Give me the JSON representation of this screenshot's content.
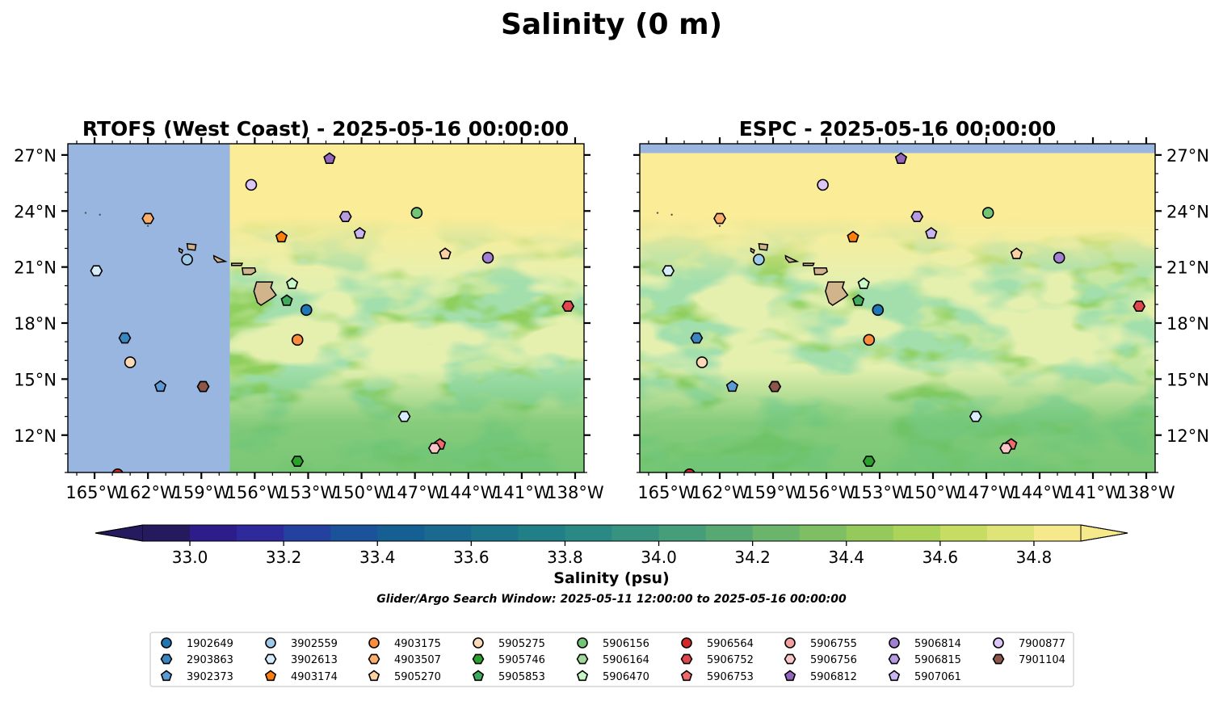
{
  "figure": {
    "title": "Salinity (0 m)",
    "footnote": "Glider/Argo Search Window: 2025-05-11 12:00:00 to 2025-05-16 00:00:00"
  },
  "chart_data": [
    {
      "type": "map-contour",
      "title": "RTOFS (West Coast) - 2025-05-16 00:00:00",
      "lon_range": [
        -166.5,
        -137.5
      ],
      "lat_range": [
        10.0,
        27.6
      ],
      "x_ticks": [
        "165°W",
        "162°W",
        "159°W",
        "156°W",
        "153°W",
        "150°W",
        "147°W",
        "144°W",
        "141°W",
        "138°W"
      ],
      "y_ticks": [
        "12°N",
        "15°N",
        "18°N",
        "21°N",
        "24°N",
        "27°N"
      ],
      "x_tick_values": [
        -165,
        -162,
        -159,
        -156,
        -153,
        -150,
        -147,
        -144,
        -141,
        -138
      ],
      "y_tick_values": [
        12,
        15,
        18,
        21,
        24,
        27
      ],
      "y_axis_side": "left",
      "no_data_region": {
        "lon": [
          -166.5,
          -157.4
        ],
        "color": "#98b6e0"
      },
      "argo_floats": [
        {
          "id": "1902649",
          "lon": -153.1,
          "lat": 18.7
        },
        {
          "id": "2903863",
          "lon": -163.3,
          "lat": 17.2
        },
        {
          "id": "3902373",
          "lon": -161.3,
          "lat": 14.6
        },
        {
          "id": "3902559",
          "lon": -159.8,
          "lat": 21.4
        },
        {
          "id": "3902613",
          "lon": -164.9,
          "lat": 20.8
        },
        {
          "id": "4903174",
          "lon": -154.5,
          "lat": 22.6
        },
        {
          "id": "4903175",
          "lon": -153.6,
          "lat": 17.1
        },
        {
          "id": "4903507",
          "lon": -162.0,
          "lat": 23.6
        },
        {
          "id": "5905270",
          "lon": -145.3,
          "lat": 21.7
        },
        {
          "id": "5905275",
          "lon": -163.0,
          "lat": 15.9
        },
        {
          "id": "5905746",
          "lon": -158.9,
          "lat": 14.6
        },
        {
          "id": "5905746",
          "lon": -153.6,
          "lat": 10.6
        },
        {
          "id": "5905853",
          "lon": -154.2,
          "lat": 19.2
        },
        {
          "id": "5906156",
          "lon": -146.9,
          "lat": 23.9
        },
        {
          "id": "5906470",
          "lon": -153.9,
          "lat": 20.1
        },
        {
          "id": "5906564",
          "lon": -163.7,
          "lat": 9.9
        },
        {
          "id": "5906752",
          "lon": -138.4,
          "lat": 18.9
        },
        {
          "id": "5906753",
          "lon": -145.6,
          "lat": 11.5
        },
        {
          "id": "5906756",
          "lon": -145.9,
          "lat": 11.3
        },
        {
          "id": "5906812",
          "lon": -151.8,
          "lat": 26.8
        },
        {
          "id": "5906814",
          "lon": -142.9,
          "lat": 21.5
        },
        {
          "id": "5906815",
          "lon": -150.9,
          "lat": 23.7
        },
        {
          "id": "5907061",
          "lon": -150.1,
          "lat": 22.8
        },
        {
          "id": "3902613",
          "lon": -147.6,
          "lat": 13.0
        },
        {
          "id": "7900877",
          "lon": -156.2,
          "lat": 25.4
        },
        {
          "id": "7901104",
          "lon": -158.9,
          "lat": 14.6
        }
      ]
    },
    {
      "type": "map-contour",
      "title": "ESPC - 2025-05-16 00:00:00",
      "lon_range": [
        -166.5,
        -137.5
      ],
      "lat_range": [
        10.0,
        27.6
      ],
      "x_ticks": [
        "165°W",
        "162°W",
        "159°W",
        "156°W",
        "153°W",
        "150°W",
        "147°W",
        "144°W",
        "141°W",
        "138°W"
      ],
      "y_ticks": [
        "12°N",
        "15°N",
        "18°N",
        "21°N",
        "24°N",
        "27°N"
      ],
      "x_tick_values": [
        -165,
        -162,
        -159,
        -156,
        -153,
        -150,
        -147,
        -144,
        -141,
        -138
      ],
      "y_tick_values": [
        12,
        15,
        18,
        21,
        24,
        27
      ],
      "y_axis_side": "right",
      "no_data_region": {
        "lat": [
          27.1,
          27.6
        ],
        "color": "#98b6e0"
      }
    }
  ],
  "colorbar": {
    "label": "Salinity (psu)",
    "min": 32.9,
    "max": 34.9,
    "step": 0.1,
    "extend": "both",
    "tick_values": [
      33.0,
      33.2,
      33.4,
      33.6,
      33.8,
      34.0,
      34.2,
      34.4,
      34.6,
      34.8
    ],
    "tick_labels": [
      "33.0",
      "33.2",
      "33.4",
      "33.6",
      "33.8",
      "34.0",
      "34.2",
      "34.4",
      "34.6",
      "34.8"
    ],
    "colors": [
      "#261a5e",
      "#2d1d8a",
      "#2e2a9c",
      "#2541a0",
      "#1a539a",
      "#165f93",
      "#1a6a90",
      "#1d758c",
      "#217f88",
      "#2a8984",
      "#37937f",
      "#459d7a",
      "#57a873",
      "#6ab46b",
      "#7ebf63",
      "#95c95c",
      "#acd35a",
      "#c6dc63",
      "#dee477",
      "#f5e98c"
    ]
  },
  "legend": {
    "placement": "bottom-center",
    "columns": [
      [
        {
          "id": "1902649",
          "marker": "circle",
          "color": "#1f77b4"
        },
        {
          "id": "2903863",
          "marker": "hexagon",
          "color": "#3a87c0"
        },
        {
          "id": "3902373",
          "marker": "pentagon",
          "color": "#5b9bd5"
        }
      ],
      [
        {
          "id": "3902559",
          "marker": "circle",
          "color": "#9ecae9"
        },
        {
          "id": "3902613",
          "marker": "hexagon",
          "color": "#d6ecfa"
        },
        {
          "id": "4903174",
          "marker": "pentagon",
          "color": "#ff7f0e"
        }
      ],
      [
        {
          "id": "4903175",
          "marker": "circle",
          "color": "#fd8d3c"
        },
        {
          "id": "4903507",
          "marker": "hexagon",
          "color": "#fdae6b"
        },
        {
          "id": "5905270",
          "marker": "pentagon",
          "color": "#fdd0a2"
        }
      ],
      [
        {
          "id": "5905275",
          "marker": "circle",
          "color": "#fdd9b5"
        },
        {
          "id": "5905746",
          "marker": "hexagon",
          "color": "#2ca02c"
        },
        {
          "id": "5905853",
          "marker": "pentagon",
          "color": "#41ab5d"
        }
      ],
      [
        {
          "id": "5906156",
          "marker": "circle",
          "color": "#74c476"
        },
        {
          "id": "5906164",
          "marker": "hexagon",
          "color": "#a1d99b"
        },
        {
          "id": "5906470",
          "marker": "pentagon",
          "color": "#c7f9c7"
        }
      ],
      [
        {
          "id": "5906564",
          "marker": "circle",
          "color": "#d62728"
        },
        {
          "id": "5906752",
          "marker": "hexagon",
          "color": "#e0474c"
        },
        {
          "id": "5906753",
          "marker": "pentagon",
          "color": "#ef6a6a"
        }
      ],
      [
        {
          "id": "5906755",
          "marker": "circle",
          "color": "#f4a0a0"
        },
        {
          "id": "5906756",
          "marker": "hexagon",
          "color": "#f8c6c6"
        },
        {
          "id": "5906812",
          "marker": "pentagon",
          "color": "#9467bd"
        }
      ],
      [
        {
          "id": "5906814",
          "marker": "circle",
          "color": "#a17fd1"
        },
        {
          "id": "5906815",
          "marker": "hexagon",
          "color": "#b89ae0"
        },
        {
          "id": "5907061",
          "marker": "pentagon",
          "color": "#cbb5f0"
        }
      ],
      [
        {
          "id": "7900877",
          "marker": "circle",
          "color": "#dcc6f8"
        },
        {
          "id": "7901104",
          "marker": "hexagon",
          "color": "#8c564b"
        }
      ]
    ]
  },
  "colors": {
    "land": "#d2b48c",
    "no_data": "#98b6e0"
  }
}
